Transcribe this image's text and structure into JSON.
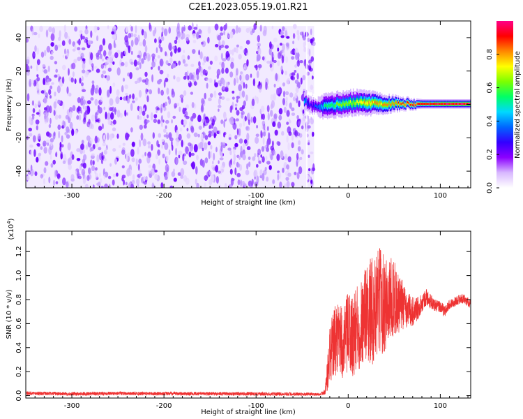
{
  "figure": {
    "title": "C2E1.2023.055.19.01.R21"
  },
  "chart_data": [
    {
      "type": "heatmap",
      "panel": "spectrogram",
      "xlabel": "Height of straight line (km)",
      "ylabel": "Frequency (Hz)",
      "xlim": [
        -350,
        133
      ],
      "ylim": [
        -50,
        50
      ],
      "x_ticks": [
        -300,
        -200,
        -100,
        0,
        100
      ],
      "x_tick_labels": [
        "-300",
        "-200",
        "-100",
        "0",
        "100"
      ],
      "y_ticks": [
        -40,
        -20,
        0,
        20,
        40
      ],
      "y_tick_labels": [
        "-40",
        "-20",
        "0",
        "20",
        "40"
      ],
      "colorbar": {
        "label": "Normalized spectral amplitude",
        "range": [
          0,
          1
        ],
        "ticks": [
          0.0,
          0.2,
          0.4,
          0.6,
          0.8
        ],
        "tick_labels": [
          "0.0",
          "0.2",
          "0.4",
          "0.6",
          "0.8"
        ],
        "colors": [
          "#ffffff",
          "#d8b8ff",
          "#8c00ff",
          "#3300ff",
          "#0066ff",
          "#00d8ff",
          "#00ff66",
          "#7cff00",
          "#ffff00",
          "#ff8800",
          "#ff0000",
          "#ff0088"
        ]
      },
      "noise_region": {
        "x_range": [
          -350,
          -37
        ],
        "y_range": [
          -50,
          47
        ]
      },
      "signal_track": [
        {
          "x": -47,
          "center": 2,
          "halfwidth": 3,
          "peak": 0.45
        },
        {
          "x": -42,
          "center": 0,
          "halfwidth": 4,
          "peak": 0.25
        },
        {
          "x": -35,
          "center": -2,
          "halfwidth": 3,
          "peak": 0.35
        },
        {
          "x": -25,
          "center": -1,
          "halfwidth": 4,
          "peak": 0.55
        },
        {
          "x": -10,
          "center": 0,
          "halfwidth": 4,
          "peak": 0.65
        },
        {
          "x": 5,
          "center": 1,
          "halfwidth": 4,
          "peak": 0.7
        },
        {
          "x": 20,
          "center": 1,
          "halfwidth": 4,
          "peak": 0.8
        },
        {
          "x": 40,
          "center": 0.5,
          "halfwidth": 3,
          "peak": 0.85
        },
        {
          "x": 60,
          "center": 0.5,
          "halfwidth": 2,
          "peak": 0.9
        },
        {
          "x": 80,
          "center": 0.3,
          "halfwidth": 1.5,
          "peak": 0.95
        },
        {
          "x": 100,
          "center": 0.3,
          "halfwidth": 1.5,
          "peak": 1.0
        },
        {
          "x": 133,
          "center": 0.3,
          "halfwidth": 1.5,
          "peak": 1.0
        }
      ]
    },
    {
      "type": "line",
      "panel": "snr",
      "xlabel": "Height of straight line (km)",
      "ylabel": "SNR (10 * v/v)",
      "y_multiplier_label": "(x10",
      "y_multiplier_exp": "4",
      "y_multiplier_close": ")",
      "xlim": [
        -350,
        133
      ],
      "ylim": [
        -0.02,
        1.37
      ],
      "x_ticks": [
        -300,
        -200,
        -100,
        0,
        100
      ],
      "x_tick_labels": [
        "-300",
        "-200",
        "-100",
        "0",
        "100"
      ],
      "y_ticks": [
        0.0,
        0.2,
        0.4,
        0.6,
        0.8,
        1.0,
        1.2
      ],
      "y_tick_labels": [
        "0.0",
        "0.2",
        "0.4",
        "0.6",
        "0.8",
        "1.0",
        "1.2"
      ],
      "color": "#ee3333",
      "series": [
        {
          "x": [
            -350,
            -300,
            -250,
            -200,
            -150,
            -100,
            -50,
            -30,
            -25,
            -20,
            -15,
            -10,
            -5,
            0,
            5,
            10,
            15,
            20,
            25,
            30,
            35,
            40,
            45,
            50,
            55,
            60,
            65,
            70,
            75,
            80,
            85,
            90,
            95,
            100,
            105,
            110,
            115,
            120,
            125,
            133
          ],
          "y": [
            0.02,
            0.015,
            0.018,
            0.017,
            0.016,
            0.015,
            0.013,
            0.01,
            0.04,
            0.32,
            0.45,
            0.47,
            0.42,
            0.52,
            0.5,
            0.55,
            0.62,
            0.72,
            0.7,
            0.73,
            0.8,
            0.75,
            0.8,
            0.82,
            0.74,
            0.76,
            0.72,
            0.7,
            0.72,
            0.78,
            0.82,
            0.78,
            0.75,
            0.74,
            0.7,
            0.76,
            0.78,
            0.8,
            0.81,
            0.76
          ],
          "spread": [
            0.015,
            0.015,
            0.015,
            0.015,
            0.015,
            0.015,
            0.015,
            0.01,
            0.03,
            0.25,
            0.3,
            0.3,
            0.3,
            0.35,
            0.35,
            0.38,
            0.38,
            0.42,
            0.45,
            0.45,
            0.45,
            0.42,
            0.36,
            0.32,
            0.26,
            0.2,
            0.15,
            0.12,
            0.1,
            0.08,
            0.07,
            0.06,
            0.05,
            0.05,
            0.05,
            0.04,
            0.04,
            0.04,
            0.04,
            0.04
          ]
        }
      ]
    }
  ]
}
